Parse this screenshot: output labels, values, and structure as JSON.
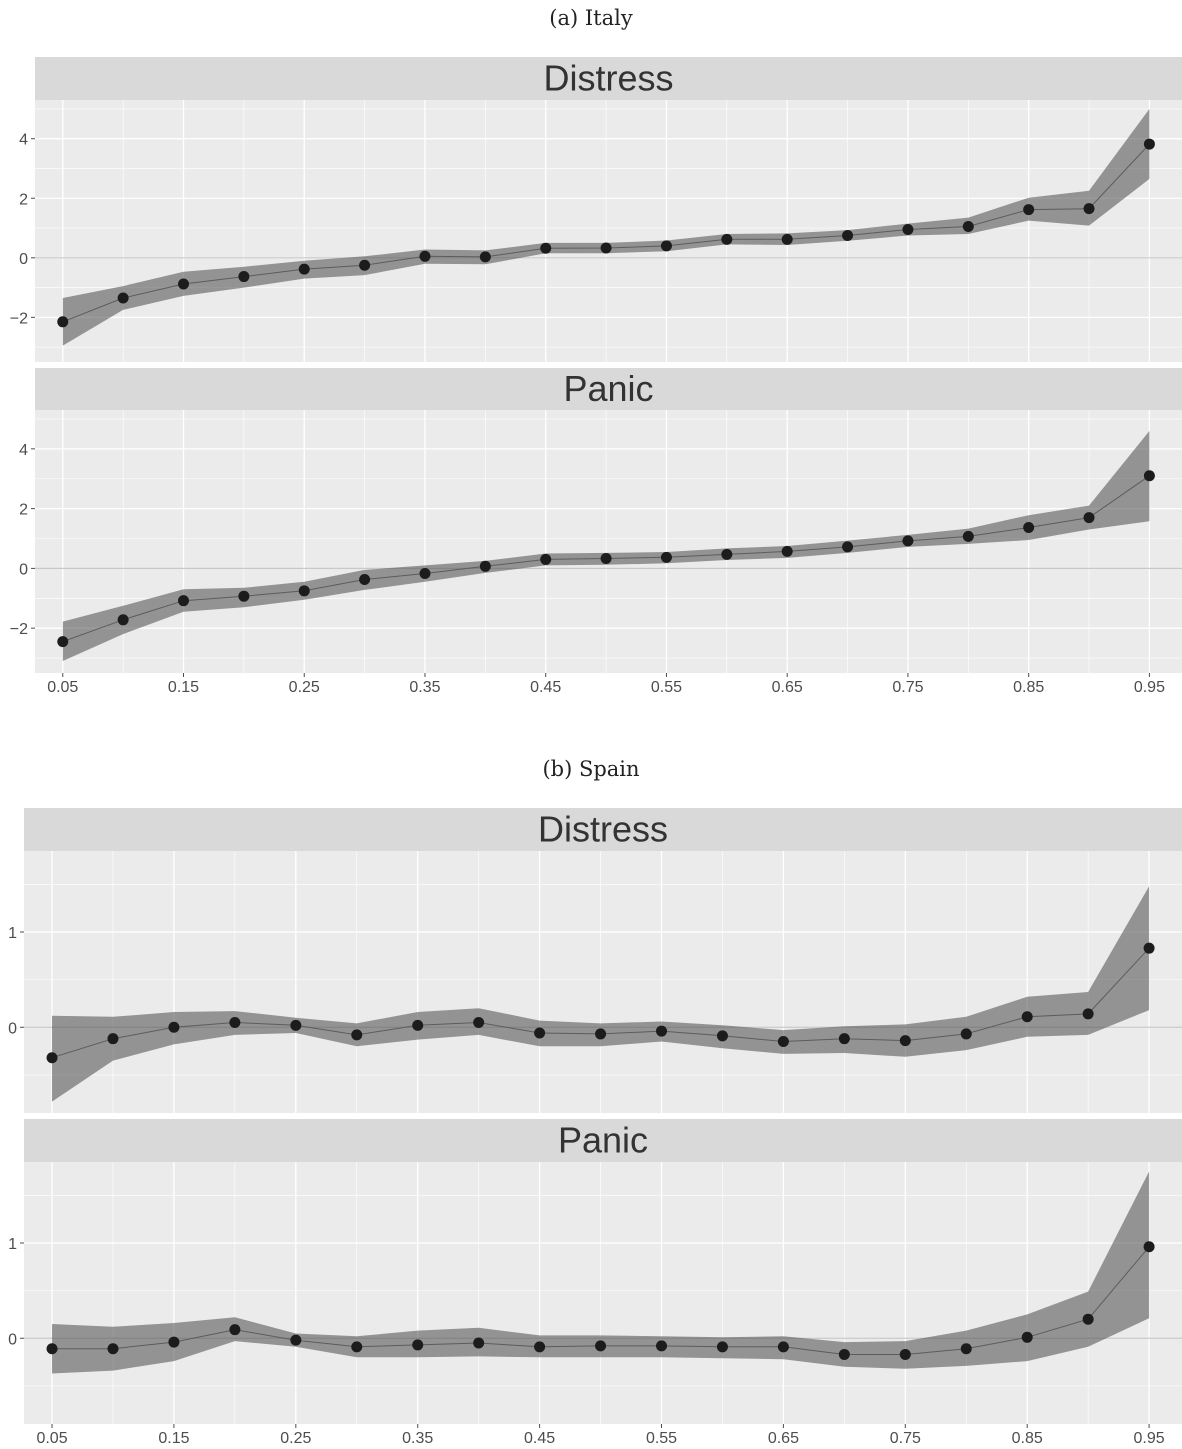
{
  "chart_data": [
    {
      "type": "line",
      "caption": "(a) Italy",
      "x_tick_labels": [
        "0.05",
        "0.15",
        "0.25",
        "0.35",
        "0.45",
        "0.55",
        "0.65",
        "0.75",
        "0.85",
        "0.95"
      ],
      "x": [
        0.05,
        0.1,
        0.15,
        0.2,
        0.25,
        0.3,
        0.35,
        0.4,
        0.45,
        0.5,
        0.55,
        0.6,
        0.65,
        0.7,
        0.75,
        0.8,
        0.85,
        0.9,
        0.95
      ],
      "xlim": [
        0.027,
        0.977
      ],
      "grid": true,
      "panels": [
        {
          "name": "Distress",
          "ylim": [
            -3.5,
            5.3
          ],
          "yticks": [
            -2,
            0,
            2,
            4
          ],
          "ytick_labels": [
            "−2",
            "0",
            "2",
            "4"
          ],
          "values": [
            -2.15,
            -1.35,
            -0.88,
            -0.63,
            -0.38,
            -0.25,
            0.05,
            0.03,
            0.32,
            0.33,
            0.4,
            0.62,
            0.62,
            0.75,
            0.95,
            1.05,
            1.62,
            1.65,
            3.82
          ],
          "lower": [
            -2.95,
            -1.75,
            -1.28,
            -1.0,
            -0.7,
            -0.58,
            -0.2,
            -0.22,
            0.15,
            0.15,
            0.22,
            0.45,
            0.43,
            0.57,
            0.75,
            0.8,
            1.25,
            1.08,
            2.65
          ],
          "upper": [
            -1.35,
            -0.95,
            -0.47,
            -0.3,
            -0.1,
            0.05,
            0.28,
            0.25,
            0.5,
            0.5,
            0.58,
            0.8,
            0.82,
            0.93,
            1.15,
            1.35,
            2.02,
            2.25,
            5.0
          ]
        },
        {
          "name": "Panic",
          "ylim": [
            -3.5,
            5.3
          ],
          "yticks": [
            -2,
            0,
            2,
            4
          ],
          "ytick_labels": [
            "−2",
            "0",
            "2",
            "4"
          ],
          "values": [
            -2.45,
            -1.72,
            -1.08,
            -0.93,
            -0.75,
            -0.37,
            -0.17,
            0.07,
            0.3,
            0.33,
            0.37,
            0.47,
            0.57,
            0.72,
            0.92,
            1.07,
            1.37,
            1.7,
            3.1
          ],
          "lower": [
            -3.1,
            -2.2,
            -1.45,
            -1.3,
            -1.05,
            -0.72,
            -0.45,
            -0.15,
            0.1,
            0.12,
            0.17,
            0.28,
            0.35,
            0.52,
            0.72,
            0.82,
            0.95,
            1.3,
            1.58
          ],
          "upper": [
            -1.78,
            -1.25,
            -0.7,
            -0.65,
            -0.45,
            -0.05,
            0.1,
            0.25,
            0.5,
            0.52,
            0.55,
            0.67,
            0.75,
            0.93,
            1.12,
            1.33,
            1.78,
            2.1,
            4.6
          ]
        }
      ]
    },
    {
      "type": "line",
      "caption": "(b) Spain",
      "x_tick_labels": [
        "0.05",
        "0.15",
        "0.25",
        "0.35",
        "0.45",
        "0.55",
        "0.65",
        "0.75",
        "0.85",
        "0.95"
      ],
      "x": [
        0.05,
        0.1,
        0.15,
        0.2,
        0.25,
        0.3,
        0.35,
        0.4,
        0.45,
        0.5,
        0.55,
        0.6,
        0.65,
        0.7,
        0.75,
        0.8,
        0.85,
        0.9,
        0.95
      ],
      "xlim": [
        0.027,
        0.977
      ],
      "grid": true,
      "panels": [
        {
          "name": "Distress",
          "ylim": [
            -0.9,
            1.85
          ],
          "yticks": [
            0,
            1
          ],
          "ytick_labels": [
            "0",
            "1"
          ],
          "values": [
            -0.32,
            -0.12,
            0.0,
            0.05,
            0.02,
            -0.08,
            0.02,
            0.05,
            -0.06,
            -0.07,
            -0.04,
            -0.09,
            -0.15,
            -0.12,
            -0.14,
            -0.07,
            0.11,
            0.14,
            0.83
          ],
          "lower": [
            -0.78,
            -0.35,
            -0.18,
            -0.08,
            -0.06,
            -0.2,
            -0.13,
            -0.08,
            -0.2,
            -0.2,
            -0.15,
            -0.22,
            -0.28,
            -0.27,
            -0.31,
            -0.24,
            -0.1,
            -0.08,
            0.18
          ],
          "upper": [
            0.12,
            0.11,
            0.16,
            0.17,
            0.1,
            0.04,
            0.16,
            0.2,
            0.07,
            0.04,
            0.06,
            0.02,
            -0.03,
            0.01,
            0.03,
            0.11,
            0.32,
            0.37,
            1.48
          ]
        },
        {
          "name": "Panic",
          "ylim": [
            -0.9,
            1.85
          ],
          "yticks": [
            0,
            1
          ],
          "ytick_labels": [
            "0",
            "1"
          ],
          "values": [
            -0.11,
            -0.11,
            -0.04,
            0.09,
            -0.02,
            -0.09,
            -0.07,
            -0.05,
            -0.09,
            -0.08,
            -0.08,
            -0.09,
            -0.09,
            -0.17,
            -0.17,
            -0.11,
            0.01,
            0.2,
            0.96
          ],
          "lower": [
            -0.37,
            -0.34,
            -0.24,
            -0.03,
            -0.09,
            -0.2,
            -0.2,
            -0.19,
            -0.2,
            -0.2,
            -0.2,
            -0.21,
            -0.22,
            -0.3,
            -0.32,
            -0.29,
            -0.24,
            -0.09,
            0.21
          ],
          "upper": [
            0.15,
            0.12,
            0.16,
            0.22,
            0.05,
            0.02,
            0.08,
            0.11,
            0.03,
            0.03,
            0.02,
            0.01,
            0.02,
            -0.04,
            -0.03,
            0.08,
            0.25,
            0.49,
            1.75
          ]
        }
      ]
    }
  ]
}
